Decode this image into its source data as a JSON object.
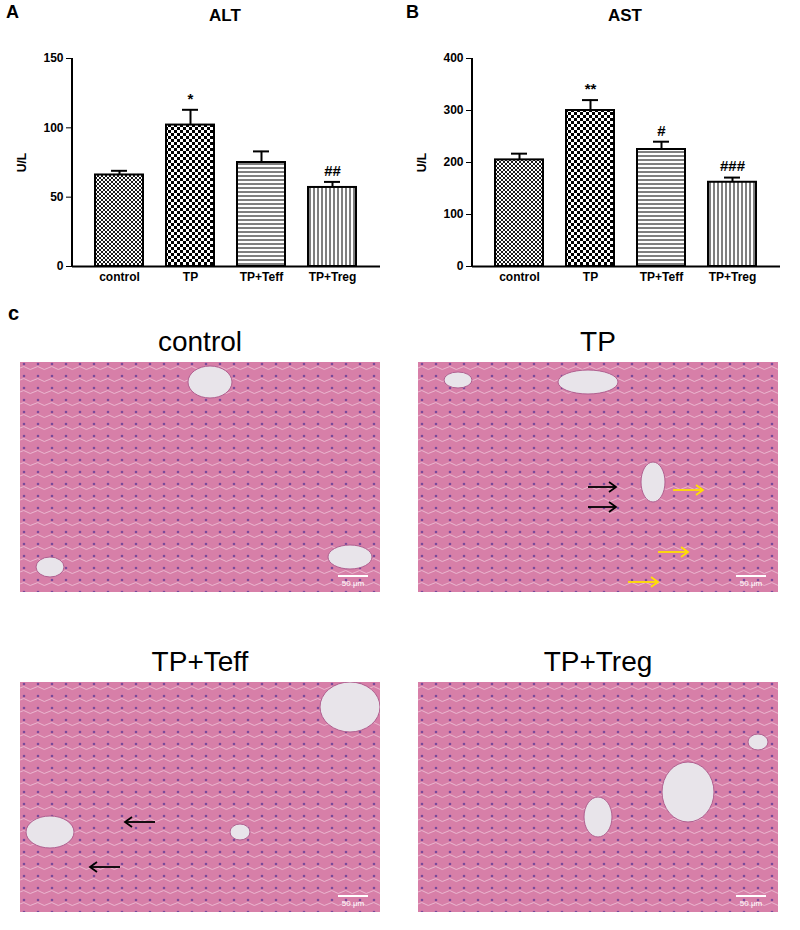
{
  "chart_data": [
    {
      "type": "bar",
      "panel": "A",
      "title": "ALT",
      "y_label": "U/L",
      "categories": [
        "control",
        "TP",
        "TP+Teff",
        "TP+Treg"
      ],
      "values": [
        66,
        102,
        75,
        57
      ],
      "errors": [
        3,
        11,
        8,
        4
      ],
      "annotations": [
        {
          "category": "TP",
          "text": "*"
        },
        {
          "category": "TP+Treg",
          "text": "##"
        }
      ],
      "color": "#000000",
      "ylim": [
        0,
        150
      ],
      "yticks": [
        0,
        50,
        100,
        150
      ],
      "grid": false
    },
    {
      "type": "bar",
      "panel": "B",
      "title": "AST",
      "y_label": "U/L",
      "categories": [
        "control",
        "TP",
        "TP+Teff",
        "TP+Treg"
      ],
      "values": [
        205,
        300,
        225,
        162
      ],
      "errors": [
        12,
        20,
        15,
        9
      ],
      "annotations": [
        {
          "category": "TP",
          "text": "**"
        },
        {
          "category": "TP+Teff",
          "text": "#"
        },
        {
          "category": "TP+Treg",
          "text": "###"
        }
      ],
      "color": "#000000",
      "ylim": [
        0,
        400
      ],
      "yticks": [
        0,
        100,
        200,
        300,
        400
      ],
      "grid": false
    }
  ],
  "panel_c": {
    "label": "c",
    "panels": [
      {
        "title": "control"
      },
      {
        "title": "TP"
      },
      {
        "title": "TP+Teff"
      },
      {
        "title": "TP+Treg"
      }
    ],
    "scale_bar": "50 μm"
  }
}
